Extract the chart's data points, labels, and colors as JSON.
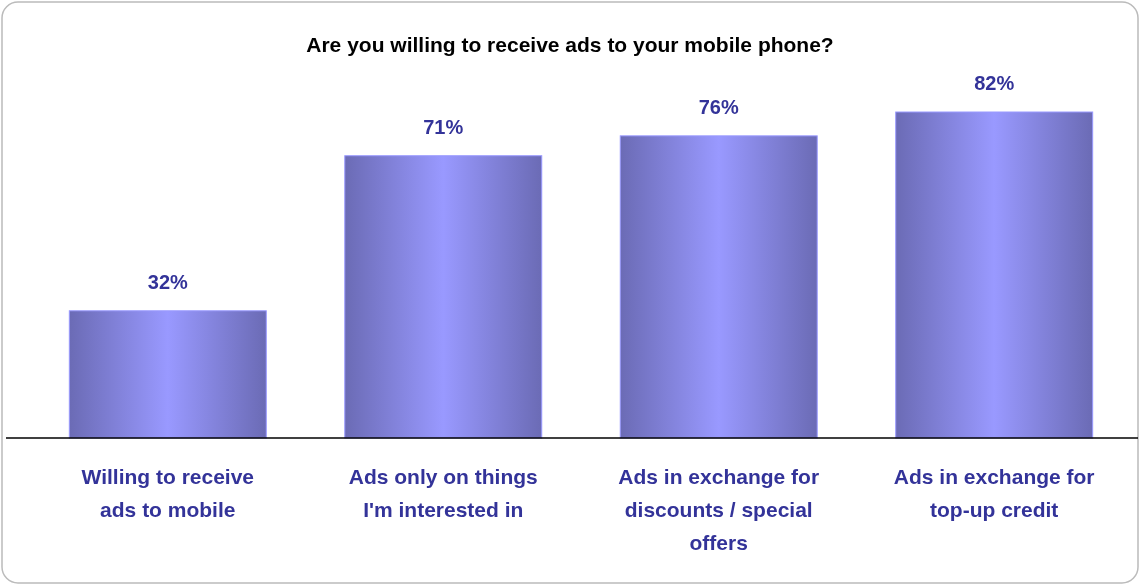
{
  "chart_data": {
    "type": "bar",
    "title": "Are you willing to receive ads to your mobile phone?",
    "categories": [
      "Willing to receive ads to mobile",
      "Ads only on things I'm interested in",
      "Ads in exchange for discounts / special offers",
      "Ads in exchange for top-up credit"
    ],
    "values": [
      32,
      71,
      76,
      82
    ],
    "value_labels": [
      "32%",
      "71%",
      "76%",
      "82%"
    ],
    "color": "#9999ff"
  }
}
